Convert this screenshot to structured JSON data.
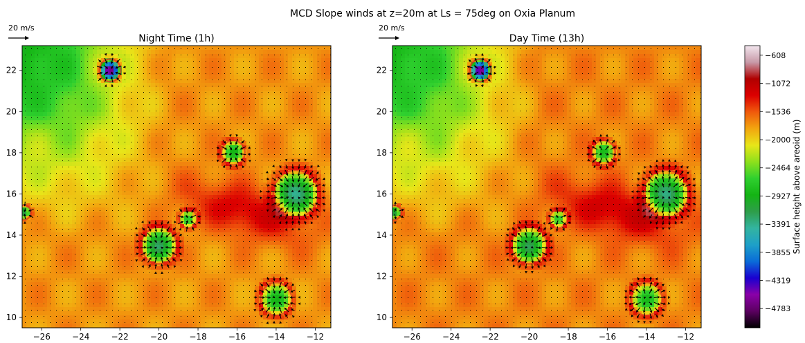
{
  "figure": {
    "title": "MCD Slope winds at z=20m at Ls = 75deg on Oxia Planum"
  },
  "colors": {
    "ramp": [
      "#000000",
      "#5b0060",
      "#8a00a8",
      "#1a00d0",
      "#0a6cd8",
      "#1ea0c8",
      "#33b4a0",
      "#2e9e4a",
      "#14b414",
      "#2fd02f",
      "#8ee01c",
      "#e8e619",
      "#f2a60f",
      "#f05a0c",
      "#dc0000",
      "#b00000",
      "#c89aa8",
      "#f2e6ee"
    ]
  },
  "chart_data": [
    {
      "type": "heatmap",
      "title": "Night Time (1h)",
      "quiver_key": "20 m/s",
      "xlim": [
        -27,
        -11.2
      ],
      "ylim": [
        9.5,
        23.2
      ],
      "xticks": [
        -26,
        -24,
        -22,
        -20,
        -18,
        -16,
        -14,
        -12
      ],
      "yticks": [
        10,
        12,
        14,
        16,
        18,
        20,
        22
      ],
      "xticklabels": [
        "−26",
        "−24",
        "−22",
        "−20",
        "−18",
        "−16",
        "−14",
        "−12"
      ],
      "yticklabels": [
        "10",
        "12",
        "14",
        "16",
        "18",
        "20",
        "22"
      ],
      "craters": [
        {
          "x": -22.5,
          "y": 22.0,
          "r": 0.55,
          "depth": 1.6
        },
        {
          "x": -13.0,
          "y": 16.0,
          "r": 1.15,
          "depth": 1.1
        },
        {
          "x": -20.0,
          "y": 13.5,
          "r": 0.9,
          "depth": 0.9
        },
        {
          "x": -14.0,
          "y": 10.9,
          "r": 0.8,
          "depth": 0.8
        },
        {
          "x": -16.2,
          "y": 18.0,
          "r": 0.6,
          "depth": 0.7
        },
        {
          "x": -26.9,
          "y": 15.1,
          "r": 0.35,
          "depth": 0.8
        },
        {
          "x": -18.5,
          "y": 14.8,
          "r": 0.45,
          "depth": 0.6
        }
      ]
    },
    {
      "type": "heatmap",
      "title": "Day  Time (13h)",
      "quiver_key": "20 m/s",
      "xlim": [
        -27,
        -11.2
      ],
      "ylim": [
        9.5,
        23.2
      ],
      "xticks": [
        -26,
        -24,
        -22,
        -20,
        -18,
        -16,
        -14,
        -12
      ],
      "yticks": [
        10,
        12,
        14,
        16,
        18,
        20,
        22
      ],
      "xticklabels": [
        "−26",
        "−24",
        "−22",
        "−20",
        "−18",
        "−16",
        "−14",
        "−12"
      ],
      "yticklabels": [
        "10",
        "12",
        "14",
        "16",
        "18",
        "20",
        "22"
      ],
      "craters": [
        {
          "x": -22.5,
          "y": 22.0,
          "r": 0.55,
          "depth": 1.6
        },
        {
          "x": -13.0,
          "y": 16.0,
          "r": 1.15,
          "depth": 1.1
        },
        {
          "x": -20.0,
          "y": 13.5,
          "r": 0.9,
          "depth": 0.9
        },
        {
          "x": -14.0,
          "y": 10.9,
          "r": 0.8,
          "depth": 0.8
        },
        {
          "x": -16.2,
          "y": 18.0,
          "r": 0.6,
          "depth": 0.7
        },
        {
          "x": -26.9,
          "y": 15.1,
          "r": 0.35,
          "depth": 0.8
        },
        {
          "x": -18.5,
          "y": 14.8,
          "r": 0.45,
          "depth": 0.6
        }
      ]
    },
    {
      "type": "colorbar",
      "label": "Surface height above areoid (m)",
      "range": [
        -5100,
        -450
      ],
      "ticks": [
        -608,
        -1072,
        -1536,
        -2000,
        -2464,
        -2927,
        -3391,
        -3855,
        -4319,
        -4783
      ],
      "ticklabels": [
        "−608",
        "−1072",
        "−1536",
        "−2000",
        "−2464",
        "−2927",
        "−3391",
        "−3855",
        "−4319",
        "−4783"
      ]
    }
  ]
}
